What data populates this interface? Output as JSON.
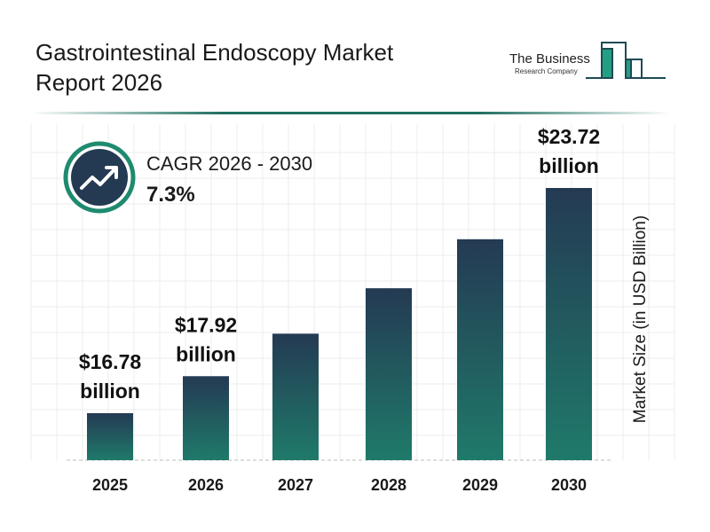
{
  "header": {
    "title_line1": "Gastrointestinal Endoscopy Market",
    "title_line2": "Report 2026"
  },
  "logo": {
    "line1": "The Business",
    "line2": "Research Company"
  },
  "cagr": {
    "label": "CAGR 2026 - 2030",
    "value": "7.3%",
    "icon": "trending-up-icon"
  },
  "colors": {
    "bar_top": "#243a53",
    "bar_bottom": "#1f7a6a",
    "accent": "#1f8a70",
    "badge": "#243a53"
  },
  "chart_data": {
    "type": "bar",
    "categories": [
      "2025",
      "2026",
      "2027",
      "2028",
      "2029",
      "2030"
    ],
    "values": [
      16.78,
      17.92,
      19.23,
      20.63,
      22.14,
      23.72
    ],
    "data_labels": [
      {
        "index": 0,
        "line1": "$16.78",
        "line2": "billion"
      },
      {
        "index": 1,
        "line1": "$17.92",
        "line2": "billion"
      },
      {
        "index": 5,
        "line1": "$23.72",
        "line2": "billion"
      }
    ],
    "xlabel": "",
    "ylabel": "Market Size (in USD Billion)",
    "grid": true,
    "legend": "none"
  }
}
